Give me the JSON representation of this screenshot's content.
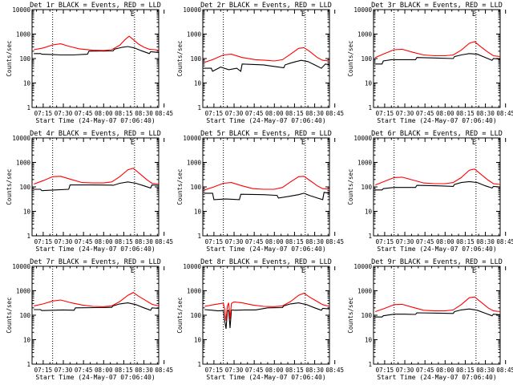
{
  "figure": {
    "time_ticks": [
      "07:15",
      "07:30",
      "07:45",
      "08:00",
      "08:15",
      "08:30",
      "08:45"
    ],
    "xlabel": "Start Time (24-May-07 07:06:40)",
    "ylabel": "Counts/sec",
    "y_ticks": [
      "1",
      "10",
      "100",
      "1000",
      "10000"
    ],
    "legend_marker": "E",
    "colors": {
      "events": "#000000",
      "lld": "#ff0000",
      "axes": "#000000",
      "markers": "#000000"
    }
  },
  "chart_data": [
    {
      "type": "line",
      "title": "Det 1r BLACK = Events, RED = LLD",
      "xlabel": "Start Time (24-May-07 07:06:40)",
      "ylabel": "Counts/sec",
      "yscale": "log",
      "ylim": [
        1,
        10000
      ],
      "xlim_minutes": [
        6.7,
        101
      ],
      "x_ticks": [
        "07:15",
        "07:30",
        "07:45",
        "08:00",
        "08:15",
        "08:30",
        "08:45"
      ],
      "vlines_minutes": [
        22,
        83
      ],
      "legend_marker": "E",
      "series": [
        {
          "name": "Events",
          "color": "black",
          "x": [
            8,
            13,
            14,
            23,
            28,
            37,
            48,
            49,
            67,
            68,
            74,
            78,
            83,
            88,
            94,
            95,
            98,
            101
          ],
          "y": [
            160,
            160,
            150,
            145,
            140,
            140,
            150,
            200,
            205,
            240,
            290,
            310,
            270,
            210,
            160,
            190,
            185,
            175
          ]
        },
        {
          "name": "LLD",
          "color": "red",
          "x": [
            8,
            15,
            22,
            28,
            34,
            42,
            52,
            60,
            66,
            72,
            76,
            79,
            82,
            86,
            90,
            94,
            98,
            101
          ],
          "y": [
            230,
            270,
            360,
            400,
            320,
            250,
            220,
            215,
            230,
            350,
            600,
            820,
            600,
            390,
            290,
            240,
            230,
            220
          ]
        }
      ]
    },
    {
      "type": "line",
      "title": "Det 2r BLACK = Events, RED = LLD",
      "xlabel": "Start Time (24-May-07 07:06:40)",
      "ylabel": "Counts/sec",
      "yscale": "log",
      "ylim": [
        1,
        10000
      ],
      "xlim_minutes": [
        6.7,
        101
      ],
      "x_ticks": [
        "07:15",
        "07:30",
        "07:45",
        "08:00",
        "08:15",
        "08:30",
        "08:45"
      ],
      "vlines_minutes": [
        22,
        83
      ],
      "legend_marker": "E",
      "series": [
        {
          "name": "Events",
          "color": "black",
          "x": [
            8,
            13,
            14,
            20,
            26,
            32,
            35,
            36,
            52,
            57,
            63,
            67,
            68,
            72,
            76,
            80,
            85,
            90,
            95,
            98,
            101
          ],
          "y": [
            40,
            40,
            30,
            45,
            35,
            40,
            30,
            60,
            55,
            50,
            45,
            42,
            55,
            65,
            75,
            85,
            75,
            55,
            40,
            60,
            55
          ]
        },
        {
          "name": "LLD",
          "color": "red",
          "x": [
            8,
            14,
            22,
            28,
            36,
            46,
            54,
            60,
            66,
            72,
            78,
            82,
            86,
            92,
            96,
            101
          ],
          "y": [
            70,
            90,
            140,
            150,
            110,
            90,
            85,
            80,
            90,
            150,
            260,
            280,
            200,
            110,
            85,
            80
          ]
        }
      ]
    },
    {
      "type": "line",
      "title": "Det 3r BLACK = Events, RED = LLD",
      "xlabel": "Start Time (24-May-07 07:06:40)",
      "ylabel": "Counts/sec",
      "yscale": "log",
      "ylim": [
        1,
        10000
      ],
      "xlim_minutes": [
        6.7,
        101
      ],
      "x_ticks": [
        "07:15",
        "07:30",
        "07:45",
        "08:00",
        "08:15",
        "08:30",
        "08:45"
      ],
      "vlines_minutes": [
        22,
        83
      ],
      "legend_marker": "E",
      "series": [
        {
          "name": "Events",
          "color": "black",
          "x": [
            8,
            13,
            14,
            20,
            30,
            38,
            39,
            55,
            66,
            67,
            72,
            78,
            84,
            90,
            95,
            96,
            101
          ],
          "y": [
            60,
            60,
            80,
            90,
            90,
            90,
            110,
            105,
            100,
            120,
            140,
            160,
            150,
            110,
            85,
            100,
            95
          ]
        },
        {
          "name": "LLD",
          "color": "red",
          "x": [
            8,
            15,
            22,
            28,
            36,
            44,
            52,
            60,
            66,
            72,
            78,
            82,
            86,
            92,
            96,
            101
          ],
          "y": [
            110,
            160,
            230,
            240,
            180,
            140,
            130,
            130,
            140,
            220,
            420,
            490,
            320,
            180,
            130,
            120
          ]
        }
      ]
    },
    {
      "type": "line",
      "title": "Det 4r BLACK = Events, RED = LLD",
      "xlabel": "Start Time (24-May-07 07:06:40)",
      "ylabel": "Counts/sec",
      "yscale": "log",
      "ylim": [
        1,
        10000
      ],
      "xlim_minutes": [
        6.7,
        101
      ],
      "x_ticks": [
        "07:15",
        "07:30",
        "07:45",
        "08:00",
        "08:15",
        "08:30",
        "08:45"
      ],
      "vlines_minutes": [
        22,
        83
      ],
      "legend_marker": "E",
      "series": [
        {
          "name": "Events",
          "color": "black",
          "x": [
            8,
            13,
            14,
            24,
            34,
            35,
            52,
            66,
            67,
            72,
            78,
            84,
            90,
            95,
            96,
            101
          ],
          "y": [
            80,
            80,
            70,
            75,
            80,
            120,
            120,
            118,
            115,
            140,
            160,
            140,
            110,
            90,
            120,
            115
          ]
        },
        {
          "name": "LLD",
          "color": "red",
          "x": [
            8,
            15,
            22,
            28,
            36,
            44,
            52,
            60,
            66,
            72,
            78,
            82,
            86,
            92,
            96,
            101
          ],
          "y": [
            130,
            180,
            260,
            270,
            200,
            150,
            145,
            145,
            160,
            260,
            500,
            580,
            380,
            200,
            140,
            130
          ]
        }
      ]
    },
    {
      "type": "line",
      "title": "Det 5r BLACK = Events, RED = LLD",
      "xlabel": "Start Time (24-May-07 07:06:40)",
      "ylabel": "Counts/sec",
      "yscale": "log",
      "ylim": [
        1,
        10000
      ],
      "xlim_minutes": [
        6.7,
        101
      ],
      "x_ticks": [
        "07:15",
        "07:30",
        "07:45",
        "08:00",
        "08:15",
        "08:30",
        "08:45"
      ],
      "vlines_minutes": [
        22,
        83
      ],
      "legend_marker": "E",
      "series": [
        {
          "name": "Events",
          "color": "black",
          "x": [
            8,
            14,
            15,
            24,
            34,
            35,
            52,
            62,
            63,
            70,
            78,
            82,
            86,
            92,
            96,
            97,
            101
          ],
          "y": [
            55,
            55,
            30,
            32,
            30,
            50,
            48,
            45,
            35,
            40,
            48,
            55,
            45,
            35,
            30,
            60,
            55
          ]
        },
        {
          "name": "LLD",
          "color": "red",
          "x": [
            8,
            15,
            22,
            28,
            36,
            44,
            52,
            60,
            66,
            72,
            78,
            82,
            86,
            92,
            96,
            101
          ],
          "y": [
            75,
            100,
            140,
            150,
            110,
            85,
            80,
            80,
            95,
            160,
            260,
            270,
            190,
            110,
            85,
            80
          ]
        }
      ]
    },
    {
      "type": "line",
      "title": "Det 6r BLACK = Events, RED = LLD",
      "xlabel": "Start Time (24-May-07 07:06:40)",
      "ylabel": "Counts/sec",
      "yscale": "log",
      "ylim": [
        1,
        10000
      ],
      "xlim_minutes": [
        6.7,
        101
      ],
      "x_ticks": [
        "07:15",
        "07:30",
        "07:45",
        "08:00",
        "08:15",
        "08:30",
        "08:45"
      ],
      "vlines_minutes": [
        22,
        83
      ],
      "legend_marker": "E",
      "series": [
        {
          "name": "Events",
          "color": "black",
          "x": [
            8,
            13,
            14,
            22,
            30,
            38,
            39,
            55,
            66,
            67,
            72,
            78,
            84,
            90,
            95,
            96,
            101
          ],
          "y": [
            75,
            75,
            85,
            95,
            95,
            95,
            115,
            110,
            105,
            125,
            150,
            165,
            150,
            110,
            90,
            105,
            100
          ]
        },
        {
          "name": "LLD",
          "color": "red",
          "x": [
            8,
            15,
            22,
            28,
            36,
            44,
            52,
            60,
            66,
            72,
            78,
            82,
            86,
            92,
            96,
            101
          ],
          "y": [
            120,
            170,
            240,
            250,
            190,
            145,
            135,
            135,
            150,
            240,
            480,
            540,
            350,
            190,
            135,
            125
          ]
        }
      ]
    },
    {
      "type": "line",
      "title": "Det 7r BLACK = Events, RED = LLD",
      "xlabel": "Start Time (24-May-07 07:06:40)",
      "ylabel": "Counts/sec",
      "yscale": "log",
      "ylim": [
        1,
        10000
      ],
      "xlim_minutes": [
        6.7,
        101
      ],
      "x_ticks": [
        "07:15",
        "07:30",
        "07:45",
        "08:00",
        "08:15",
        "08:30",
        "08:45"
      ],
      "vlines_minutes": [
        22,
        83
      ],
      "legend_marker": "E",
      "series": [
        {
          "name": "Events",
          "color": "black",
          "x": [
            8,
            13,
            14,
            22,
            30,
            38,
            39,
            55,
            66,
            67,
            72,
            78,
            84,
            90,
            95,
            96,
            101
          ],
          "y": [
            170,
            170,
            155,
            160,
            165,
            160,
            200,
            205,
            210,
            240,
            290,
            320,
            270,
            200,
            160,
            200,
            190
          ]
        },
        {
          "name": "LLD",
          "color": "red",
          "x": [
            8,
            15,
            22,
            28,
            36,
            44,
            52,
            60,
            66,
            72,
            78,
            82,
            86,
            92,
            96,
            101
          ],
          "y": [
            240,
            290,
            380,
            420,
            320,
            260,
            230,
            225,
            240,
            360,
            650,
            850,
            600,
            380,
            280,
            240
          ]
        }
      ]
    },
    {
      "type": "line",
      "title": "Det 8r BLACK = Events, RED = LLD",
      "xlabel": "Start Time (24-May-07 07:06:40)",
      "ylabel": "Counts/sec",
      "yscale": "log",
      "ylim": [
        1,
        10000
      ],
      "xlim_minutes": [
        6.7,
        101
      ],
      "x_ticks": [
        "07:15",
        "07:30",
        "07:45",
        "08:00",
        "08:15",
        "08:30",
        "08:45"
      ],
      "vlines_minutes": [
        22,
        83
      ],
      "legend_marker": "E",
      "series": [
        {
          "name": "Events",
          "color": "black",
          "x": [
            8,
            14,
            18,
            22,
            23,
            24,
            25,
            26,
            27,
            28,
            29,
            30,
            38,
            46,
            55,
            66,
            67,
            72,
            78,
            84,
            90,
            95,
            96,
            101
          ],
          "y": [
            170,
            160,
            150,
            155,
            60,
            28,
            150,
            160,
            30,
            160,
            165,
            160,
            165,
            165,
            200,
            205,
            240,
            290,
            320,
            270,
            200,
            160,
            190,
            180
          ]
        },
        {
          "name": "LLD",
          "color": "red",
          "x": [
            8,
            15,
            20,
            22,
            23,
            24,
            25,
            26,
            27,
            28,
            29,
            30,
            36,
            44,
            52,
            60,
            66,
            72,
            78,
            82,
            86,
            92,
            96,
            101
          ],
          "y": [
            230,
            270,
            300,
            310,
            180,
            60,
            240,
            320,
            70,
            300,
            330,
            350,
            320,
            260,
            230,
            225,
            240,
            360,
            650,
            800,
            560,
            360,
            270,
            230
          ]
        }
      ]
    },
    {
      "type": "line",
      "title": "Det 9r BLACK = Events, RED = LLD",
      "xlabel": "Start Time (24-May-07 07:06:40)",
      "ylabel": "Counts/sec",
      "yscale": "log",
      "ylim": [
        1,
        10000
      ],
      "xlim_minutes": [
        6.7,
        101
      ],
      "x_ticks": [
        "07:15",
        "07:30",
        "07:45",
        "08:00",
        "08:15",
        "08:30",
        "08:45"
      ],
      "vlines_minutes": [
        22,
        83
      ],
      "legend_marker": "E",
      "series": [
        {
          "name": "Events",
          "color": "black",
          "x": [
            8,
            13,
            14,
            22,
            30,
            38,
            39,
            55,
            66,
            67,
            72,
            78,
            84,
            90,
            95,
            96,
            101
          ],
          "y": [
            85,
            85,
            95,
            110,
            110,
            108,
            125,
            122,
            118,
            140,
            165,
            180,
            160,
            120,
            95,
            110,
            105
          ]
        },
        {
          "name": "LLD",
          "color": "red",
          "x": [
            8,
            15,
            22,
            28,
            36,
            44,
            52,
            60,
            66,
            72,
            78,
            82,
            86,
            92,
            96,
            101
          ],
          "y": [
            140,
            190,
            270,
            280,
            210,
            160,
            150,
            150,
            165,
            270,
            520,
            560,
            370,
            200,
            150,
            140
          ]
        }
      ]
    }
  ]
}
